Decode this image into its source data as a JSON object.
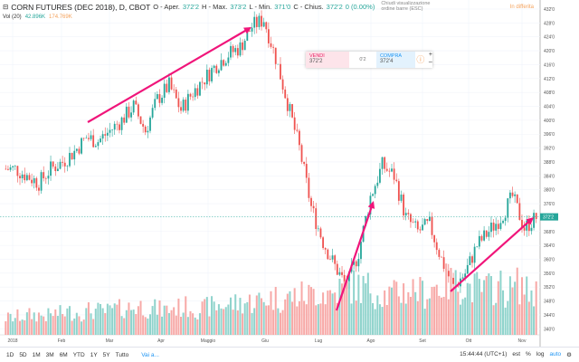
{
  "header": {
    "title": "CORN FUTURES (DEC 2018), D, CBOT",
    "o_label": "O - Aper.",
    "o": "372'2",
    "h_label": "H - Max.",
    "h": "373'2",
    "l_label": "L - Min.",
    "l": "371'0",
    "c_label": "C - Chius.",
    "c": "372'2",
    "change": "0 (0.00%)",
    "hint": "Chiudi visualizzazione ordine barre (ESC)",
    "delayed": "In differita"
  },
  "volume": {
    "label": "Vol (20)",
    "v1": "42.896K",
    "v2": "174.769K"
  },
  "trade": {
    "sell_label": "VENDI",
    "sell": "372'2",
    "spread": "0'2",
    "buy_label": "COMPRA",
    "buy": "372'4"
  },
  "bottom": {
    "ranges": [
      "1D",
      "5D",
      "1M",
      "3M",
      "6M",
      "YTD",
      "1Y",
      "5Y",
      "Tutto"
    ],
    "goto": "Vai a...",
    "time": "15:44:44 (UTC+1)",
    "est": "est",
    "pct": "%",
    "log": "log",
    "auto": "auto"
  },
  "colors": {
    "up": "#26a69a",
    "down": "#ef5350",
    "arrow": "#f0157a",
    "vol_up": "#8fd3cc",
    "vol_down": "#f7a9a7"
  },
  "chart_data": {
    "type": "candlestick",
    "title": "CORN FUTURES (DEC 2018), D, CBOT",
    "ylim": [
      338,
      434
    ],
    "y_ticks": [
      "432'0",
      "428'0",
      "424'0",
      "420'0",
      "416'0",
      "412'0",
      "408'0",
      "404'0",
      "400'0",
      "396'0",
      "392'0",
      "388'0",
      "384'0",
      "380'0",
      "376'0",
      "372'2",
      "368'0",
      "364'0",
      "360'0",
      "356'0",
      "352'0",
      "348'0",
      "344'0",
      "340'0"
    ],
    "x_ticks": [
      "2018",
      "Feb",
      "Mar",
      "Apr",
      "Maggio",
      "Giu",
      "Lug",
      "Ago",
      "Set",
      "Ott",
      "Nov"
    ],
    "last_price": "372'2",
    "weekly_close": [
      386,
      384,
      382,
      386,
      388,
      391,
      395,
      394,
      397,
      400,
      404,
      397,
      406,
      410,
      403,
      408,
      412,
      416,
      419,
      421,
      427,
      429,
      418,
      405,
      392,
      375,
      365,
      358,
      352,
      362,
      378,
      387,
      384,
      372,
      368,
      370,
      360,
      352,
      356,
      364,
      368,
      372,
      378,
      369,
      372
    ],
    "weekly_volume_k": [
      60,
      65,
      70,
      68,
      75,
      80,
      78,
      85,
      82,
      90,
      95,
      100,
      92,
      88,
      95,
      98,
      90,
      100,
      105,
      110,
      115,
      120,
      130,
      125,
      135,
      140,
      150,
      145,
      160,
      170,
      165,
      150,
      140,
      155,
      160,
      150,
      170,
      180,
      175,
      165,
      160,
      170,
      155,
      175,
      150
    ]
  }
}
